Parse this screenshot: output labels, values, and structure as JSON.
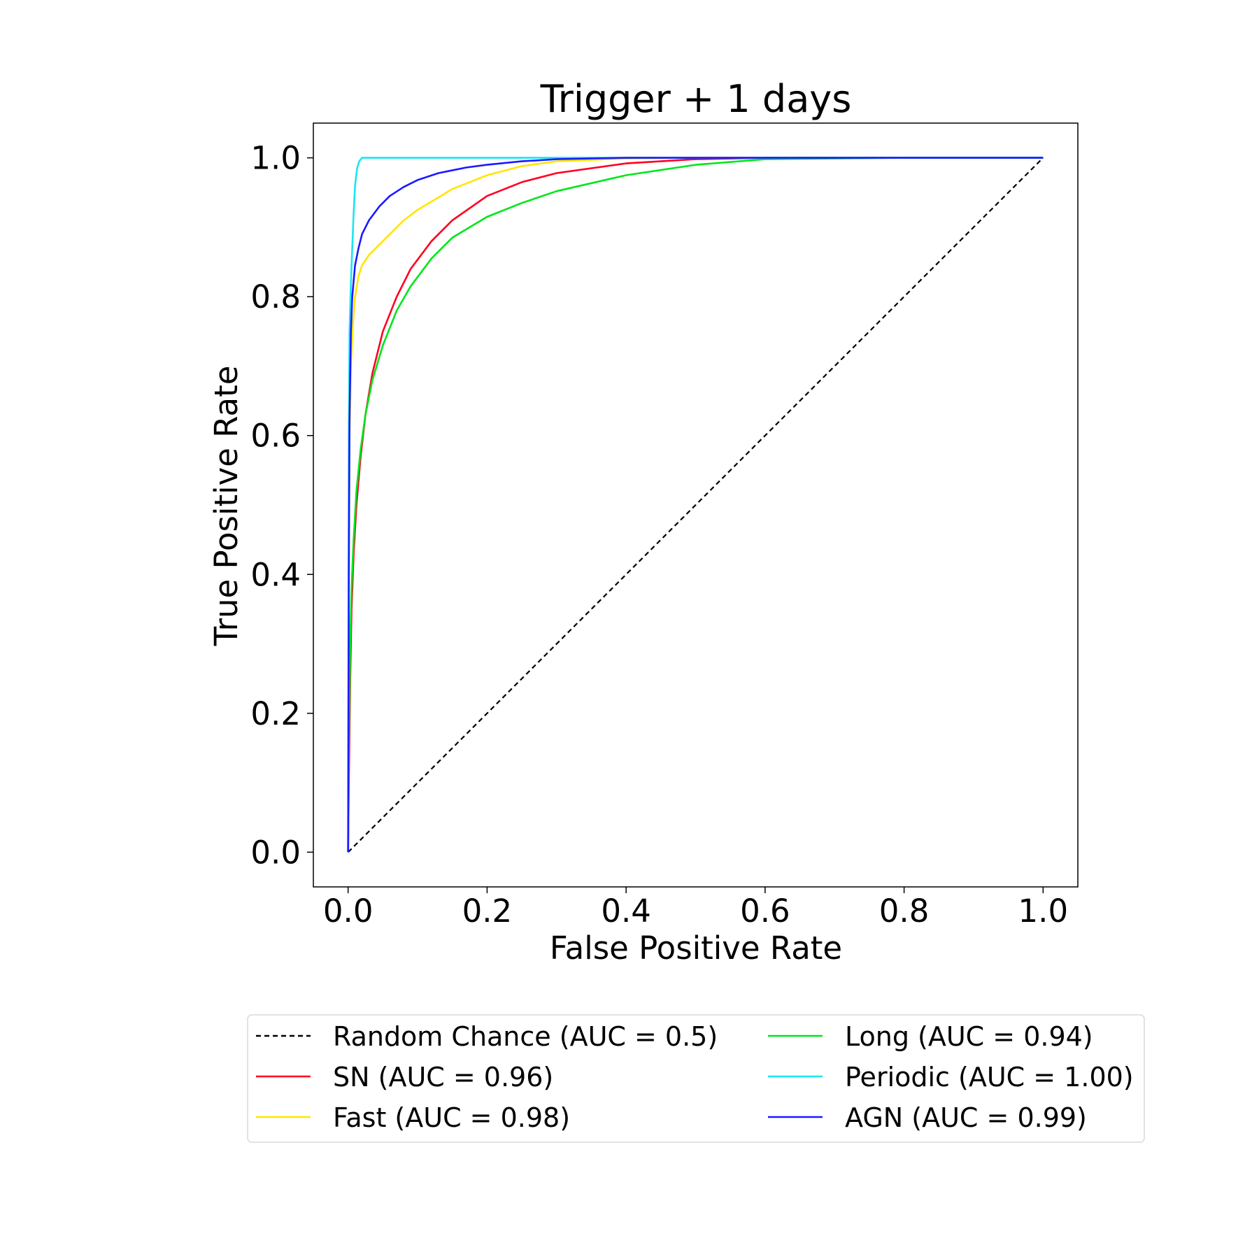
{
  "chart_data": {
    "type": "line",
    "title": "Trigger + 1 days",
    "xlabel": "False Positive Rate",
    "ylabel": "True Positive Rate",
    "xlim": [
      -0.05,
      1.05
    ],
    "ylim": [
      -0.05,
      1.05
    ],
    "xticks": [
      "0.0",
      "0.2",
      "0.4",
      "0.6",
      "0.8",
      "1.0"
    ],
    "yticks": [
      "0.0",
      "0.2",
      "0.4",
      "0.6",
      "0.8",
      "1.0"
    ],
    "grid": false,
    "legend_position": "below",
    "series": [
      {
        "name": "Random Chance (AUC = 0.5)",
        "color": "#000000",
        "dash": true,
        "x": [
          0,
          1
        ],
        "y": [
          0,
          1
        ]
      },
      {
        "name": "SN (AUC = 0.96)",
        "color": "#ff0022",
        "dash": false,
        "x": [
          0,
          0.001,
          0.003,
          0.005,
          0.008,
          0.012,
          0.018,
          0.025,
          0.035,
          0.05,
          0.07,
          0.09,
          0.12,
          0.15,
          0.2,
          0.25,
          0.3,
          0.4,
          0.5,
          0.6,
          0.8,
          1.0
        ],
        "y": [
          0,
          0.1,
          0.25,
          0.35,
          0.43,
          0.5,
          0.57,
          0.63,
          0.69,
          0.75,
          0.8,
          0.84,
          0.88,
          0.91,
          0.945,
          0.965,
          0.978,
          0.992,
          0.998,
          1.0,
          1.0,
          1.0
        ]
      },
      {
        "name": "Fast (AUC = 0.98)",
        "color": "#ffe600",
        "dash": false,
        "x": [
          0,
          0.001,
          0.002,
          0.004,
          0.007,
          0.01,
          0.015,
          0.02,
          0.03,
          0.05,
          0.08,
          0.1,
          0.15,
          0.2,
          0.25,
          0.3,
          0.4,
          0.5,
          0.6,
          0.8,
          1.0
        ],
        "y": [
          0,
          0.4,
          0.6,
          0.7,
          0.76,
          0.8,
          0.83,
          0.845,
          0.86,
          0.88,
          0.91,
          0.925,
          0.955,
          0.975,
          0.988,
          0.995,
          0.999,
          1.0,
          1.0,
          1.0,
          1.0
        ]
      },
      {
        "name": "Long (AUC = 0.94)",
        "color": "#00e61a",
        "dash": false,
        "x": [
          0,
          0.001,
          0.003,
          0.005,
          0.008,
          0.012,
          0.018,
          0.025,
          0.035,
          0.05,
          0.07,
          0.09,
          0.12,
          0.15,
          0.2,
          0.25,
          0.3,
          0.4,
          0.5,
          0.6,
          0.8,
          1.0
        ],
        "y": [
          0,
          0.15,
          0.3,
          0.38,
          0.45,
          0.52,
          0.58,
          0.63,
          0.68,
          0.73,
          0.78,
          0.815,
          0.855,
          0.885,
          0.915,
          0.935,
          0.952,
          0.975,
          0.99,
          0.998,
          1.0,
          1.0
        ]
      },
      {
        "name": "Periodic (AUC = 1.00)",
        "color": "#1ae5f0",
        "dash": false,
        "x": [
          0,
          0.001,
          0.002,
          0.004,
          0.006,
          0.008,
          0.01,
          0.013,
          0.016,
          0.02,
          0.05,
          0.2,
          0.5,
          1.0
        ],
        "y": [
          0,
          0.6,
          0.75,
          0.82,
          0.87,
          0.92,
          0.96,
          0.985,
          0.995,
          1.0,
          1.0,
          1.0,
          1.0,
          1.0
        ]
      },
      {
        "name": "AGN (AUC = 0.99)",
        "color": "#1a1aff",
        "dash": false,
        "x": [
          0,
          0.001,
          0.002,
          0.004,
          0.006,
          0.01,
          0.015,
          0.02,
          0.03,
          0.045,
          0.06,
          0.08,
          0.1,
          0.13,
          0.17,
          0.2,
          0.25,
          0.3,
          0.4,
          0.6,
          1.0
        ],
        "y": [
          0,
          0.4,
          0.62,
          0.75,
          0.8,
          0.845,
          0.87,
          0.89,
          0.91,
          0.93,
          0.945,
          0.958,
          0.968,
          0.978,
          0.986,
          0.99,
          0.995,
          0.998,
          1.0,
          1.0,
          1.0
        ]
      }
    ],
    "legend_order": [
      0,
      3,
      1,
      4,
      2,
      5
    ]
  }
}
